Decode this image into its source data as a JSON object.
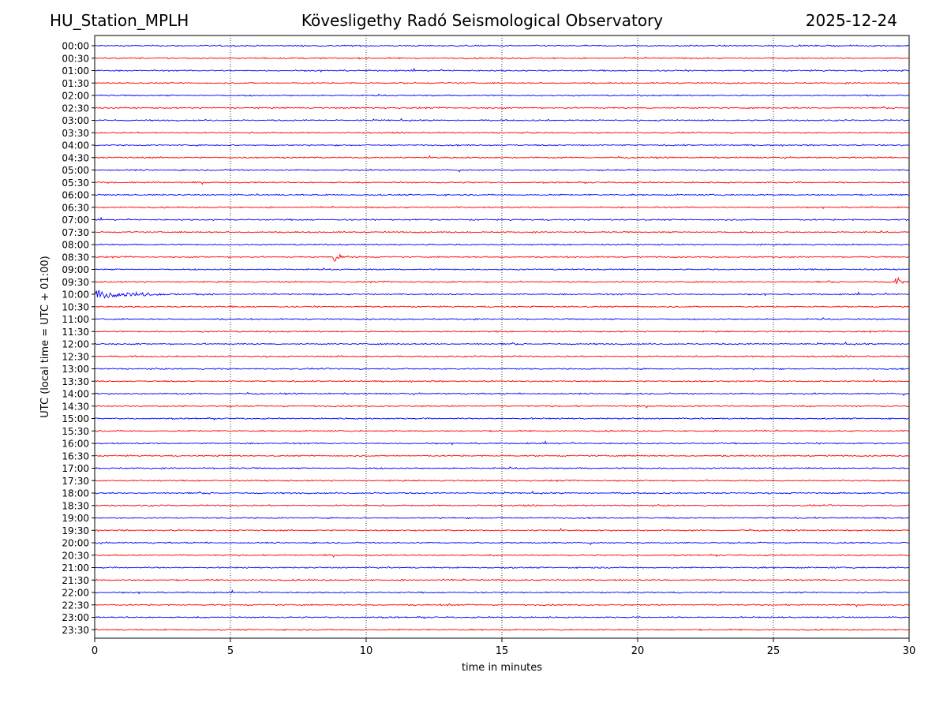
{
  "header": {
    "station": "HU_Station_MPLH",
    "observatory": "Kövesligethy Radó Seismological Observatory",
    "date": "2025-12-24"
  },
  "chart_data": {
    "type": "line",
    "xlabel": "time in minutes",
    "ylabel": "UTC (local time = UTC + 01:00)",
    "xlim": [
      0,
      30
    ],
    "x_ticks": [
      0,
      5,
      10,
      15,
      20,
      25,
      30
    ],
    "x_tick_labels": [
      "0",
      "5",
      "10",
      "15",
      "20",
      "25",
      "30"
    ],
    "grid": "vertical dotted at x ticks",
    "row_labels": [
      "00:00",
      "00:30",
      "01:00",
      "01:30",
      "02:00",
      "02:30",
      "03:00",
      "03:30",
      "04:00",
      "04:30",
      "05:00",
      "05:30",
      "06:00",
      "06:30",
      "07:00",
      "07:30",
      "08:00",
      "08:30",
      "09:00",
      "09:30",
      "10:00",
      "10:30",
      "11:00",
      "11:30",
      "12:00",
      "12:30",
      "13:00",
      "13:30",
      "14:00",
      "14:30",
      "15:00",
      "15:30",
      "16:00",
      "16:30",
      "17:00",
      "17:30",
      "18:00",
      "18:30",
      "19:00",
      "19:30",
      "20:00",
      "20:30",
      "21:00",
      "21:30",
      "22:00",
      "22:30",
      "23:00",
      "23:30"
    ],
    "row_colors": [
      "#0000ff",
      "#ff0000"
    ],
    "series": {
      "name": "seismic trace (30-minute rows, alternating colors)",
      "noise_amplitude": 0.12,
      "events": [
        {
          "row": "08:30",
          "start_min": 8.8,
          "end_min": 9.8,
          "peak_amplitude": 1.0,
          "note": "spike with short coda"
        },
        {
          "row": "10:00",
          "start_min": 0.0,
          "end_min": 4.5,
          "peak_amplitude": 1.0,
          "note": "local event with long coda"
        },
        {
          "row": "09:30",
          "start_min": 29.5,
          "end_min": 30.0,
          "peak_amplitude": 1.5,
          "note": "event onset at end of row"
        },
        {
          "row": "22:30",
          "start_min": 13.0,
          "end_min": 13.7,
          "peak_amplitude": 0.35,
          "note": "minor burst"
        }
      ]
    }
  }
}
